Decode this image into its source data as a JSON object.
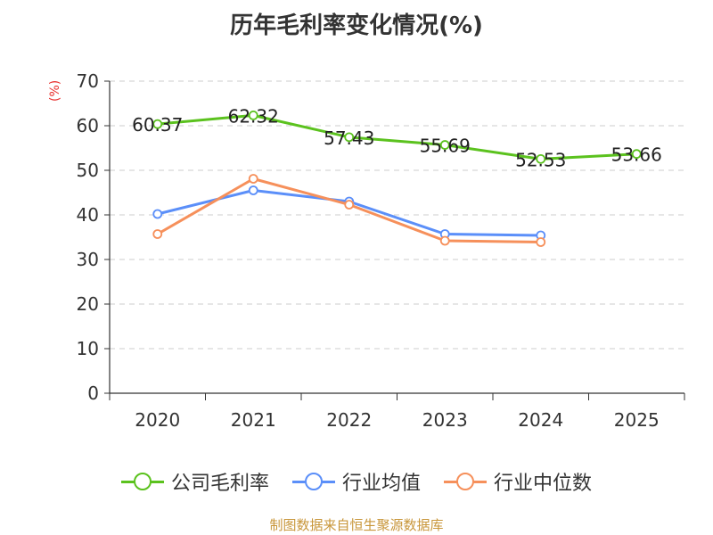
{
  "chart_data": {
    "type": "line",
    "title": "历年毛利率变化情况(%)",
    "ylabel": "(%)",
    "categories": [
      "2020",
      "2021",
      "2022",
      "2023",
      "2024",
      "2025"
    ],
    "ylim": [
      0,
      70
    ],
    "yticks": [
      0,
      10,
      20,
      30,
      40,
      50,
      60,
      70
    ],
    "grid": true,
    "legend_position": "bottom",
    "series": [
      {
        "name": "公司毛利率",
        "color": "#5bc21e",
        "values": [
          60.37,
          62.32,
          57.43,
          55.69,
          52.53,
          53.66
        ],
        "labels": [
          "60.37",
          "62.32",
          "57.43",
          "55.69",
          "52.53",
          "53.66"
        ]
      },
      {
        "name": "行业均值",
        "color": "#5b8ff9",
        "values": [
          40.2,
          45.5,
          43.0,
          35.7,
          35.4,
          null
        ]
      },
      {
        "name": "行业中位数",
        "color": "#f6905b",
        "values": [
          35.7,
          48.1,
          42.3,
          34.2,
          33.9,
          null
        ]
      }
    ]
  },
  "source": "制图数据来自恒生聚源数据库"
}
